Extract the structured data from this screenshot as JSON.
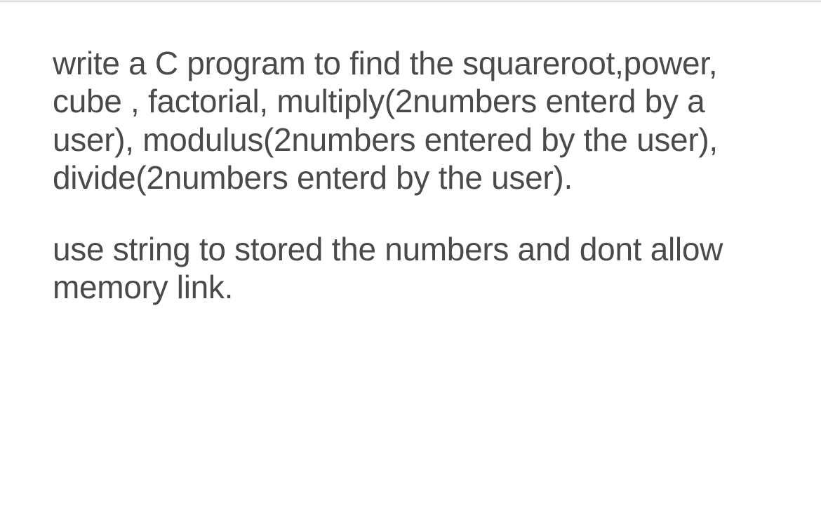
{
  "document": {
    "paragraph1": "write a C program to find the squareroot,power, cube , factorial, multiply(2numbers enterd by a user), modulus(2numbers entered by the user), divide(2numbers enterd by the user).",
    "paragraph2": "use string to stored the numbers and dont allow memory link.",
    "text_color": "#4a4a4a",
    "background_color": "#ffffff",
    "border_color": "#e8e8e8",
    "font_size": 46,
    "line_height": 1.18
  }
}
